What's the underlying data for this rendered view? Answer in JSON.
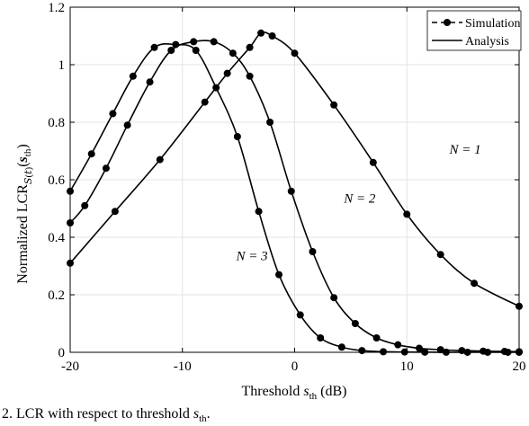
{
  "chart_data": {
    "type": "line",
    "title": "",
    "xlabel": "Threshold s_th (dB)",
    "ylabel": "Normalized LCR_S(t)(s_th)",
    "xlim": [
      -20,
      20
    ],
    "ylim": [
      0,
      1.2
    ],
    "xticks": [
      -20,
      -10,
      0,
      10,
      20
    ],
    "yticks": [
      0,
      0.2,
      0.4,
      0.6,
      0.8,
      1,
      1.2
    ],
    "xtick_labels": [
      "-20",
      "-10",
      "0",
      "10",
      "20"
    ],
    "ytick_labels": [
      "0",
      "0.2",
      "0.4",
      "0.6",
      "0.8",
      "1",
      "1.2"
    ],
    "grid": true,
    "legend_position": "top-right",
    "legend": [
      {
        "label": "Simulation",
        "style": "dashed line with circle markers"
      },
      {
        "label": "Analysis",
        "style": "solid line"
      }
    ],
    "series": [
      {
        "name": "N = 1",
        "x": [
          -20,
          -16,
          -12,
          -8,
          -6,
          -4,
          -3,
          -2,
          0,
          3.5,
          7,
          10,
          13,
          16,
          20
        ],
        "y": [
          0.31,
          0.49,
          0.67,
          0.87,
          0.97,
          1.06,
          1.11,
          1.1,
          1.04,
          0.86,
          0.66,
          0.48,
          0.34,
          0.24,
          0.16
        ]
      },
      {
        "name": "N = 2",
        "x": [
          -20,
          -18.7,
          -16.8,
          -14.9,
          -12.9,
          -11,
          -9,
          -7.2,
          -5.5,
          -4,
          -2.2,
          -0.3,
          1.6,
          3.5,
          5.4,
          7.3,
          9.2,
          11.1,
          13,
          14.9,
          16.8,
          18.7,
          20
        ],
        "y": [
          0.45,
          0.51,
          0.64,
          0.79,
          0.94,
          1.05,
          1.08,
          1.08,
          1.04,
          0.96,
          0.8,
          0.56,
          0.35,
          0.19,
          0.1,
          0.05,
          0.026,
          0.014,
          0.009,
          0.006,
          0.004,
          0.003,
          0.002
        ]
      },
      {
        "name": "N = 3",
        "x": [
          -20,
          -18.1,
          -16.2,
          -14.4,
          -12.5,
          -10.6,
          -8.8,
          -7,
          -5.1,
          -3.2,
          -1.4,
          0.5,
          2.3,
          4.2,
          6,
          7.9,
          9.8,
          11.6,
          13.5,
          15.4,
          17.2,
          19,
          20
        ],
        "y": [
          0.56,
          0.69,
          0.83,
          0.96,
          1.06,
          1.07,
          1.05,
          0.92,
          0.75,
          0.49,
          0.27,
          0.13,
          0.05,
          0.018,
          0.006,
          0.002,
          0.001,
          0.0005,
          0.0002,
          0.0001,
          0.0001,
          0.0001,
          0.0001
        ]
      }
    ],
    "annotations": [
      {
        "text": "N = 1",
        "x": 15.2,
        "y": 0.69
      },
      {
        "text": "N = 2",
        "x": 5.8,
        "y": 0.52
      },
      {
        "text": "N = 3",
        "x": -3.8,
        "y": 0.32
      }
    ]
  },
  "caption": "2.  LCR with respect to threshold s_th."
}
